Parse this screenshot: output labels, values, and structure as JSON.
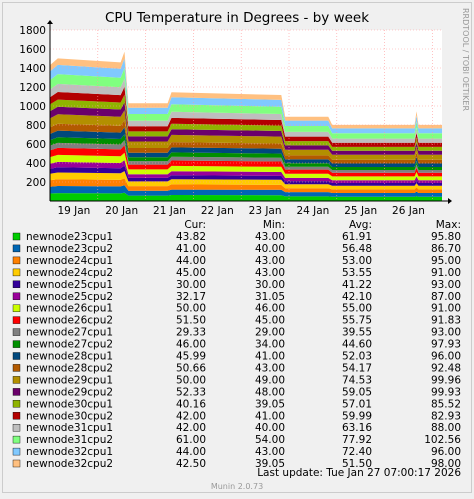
{
  "chart_data": {
    "type": "area",
    "title": "CPU Temperature in Degrees - by week",
    "side_label": "RRDTOOL / TOBI OETIKER",
    "footer": "Munin 2.0.73",
    "last_update": "Last update:  Tue Jan 27 07:00:17 2026",
    "ylim": [
      0,
      1800
    ],
    "yticks": [
      200,
      400,
      600,
      800,
      1000,
      1200,
      1400,
      1600,
      1800
    ],
    "xticks": [
      "19 Jan",
      "20 Jan",
      "21 Jan",
      "22 Jan",
      "23 Jan",
      "24 Jan",
      "25 Jan",
      "26 Jan"
    ],
    "grid": true,
    "columns": [
      "Cur:",
      "Min:",
      "Avg:",
      "Max:"
    ],
    "series": [
      {
        "name": "newnode23cpu1",
        "color": "#00cc00",
        "cur": "43.82",
        "min": "43.00",
        "avg": "61.91",
        "max": "95.80"
      },
      {
        "name": "newnode23cpu2",
        "color": "#0066b3",
        "cur": "41.00",
        "min": "40.00",
        "avg": "56.48",
        "max": "86.70"
      },
      {
        "name": "newnode24cpu1",
        "color": "#ff8000",
        "cur": "44.00",
        "min": "43.00",
        "avg": "53.00",
        "max": "95.00"
      },
      {
        "name": "newnode24cpu2",
        "color": "#ffcc00",
        "cur": "45.00",
        "min": "43.00",
        "avg": "53.55",
        "max": "91.00"
      },
      {
        "name": "newnode25cpu1",
        "color": "#330099",
        "cur": "30.00",
        "min": "30.00",
        "avg": "41.22",
        "max": "93.00"
      },
      {
        "name": "newnode25cpu2",
        "color": "#990099",
        "cur": "32.17",
        "min": "31.05",
        "avg": "42.10",
        "max": "87.00"
      },
      {
        "name": "newnode26cpu1",
        "color": "#ccff00",
        "cur": "50.00",
        "min": "46.00",
        "avg": "55.00",
        "max": "91.00"
      },
      {
        "name": "newnode26cpu2",
        "color": "#ff0000",
        "cur": "51.50",
        "min": "45.00",
        "avg": "55.75",
        "max": "91.83"
      },
      {
        "name": "newnode27cpu1",
        "color": "#808080",
        "cur": "29.33",
        "min": "29.00",
        "avg": "39.55",
        "max": "93.00"
      },
      {
        "name": "newnode27cpu2",
        "color": "#008f00",
        "cur": "46.00",
        "min": "34.00",
        "avg": "44.60",
        "max": "97.93"
      },
      {
        "name": "newnode28cpu1",
        "color": "#00487d",
        "cur": "45.99",
        "min": "41.00",
        "avg": "52.03",
        "max": "96.00"
      },
      {
        "name": "newnode28cpu2",
        "color": "#b35a00",
        "cur": "50.66",
        "min": "43.00",
        "avg": "54.17",
        "max": "92.48"
      },
      {
        "name": "newnode29cpu1",
        "color": "#b38f00",
        "cur": "50.00",
        "min": "49.00",
        "avg": "74.53",
        "max": "99.96"
      },
      {
        "name": "newnode29cpu2",
        "color": "#6b006b",
        "cur": "52.33",
        "min": "48.00",
        "avg": "59.05",
        "max": "99.93"
      },
      {
        "name": "newnode30cpu1",
        "color": "#8fb300",
        "cur": "40.16",
        "min": "39.05",
        "avg": "57.01",
        "max": "85.52"
      },
      {
        "name": "newnode30cpu2",
        "color": "#b30000",
        "cur": "42.00",
        "min": "41.00",
        "avg": "59.99",
        "max": "82.93"
      },
      {
        "name": "newnode31cpu1",
        "color": "#bebebe",
        "cur": "42.00",
        "min": "40.00",
        "avg": "63.16",
        "max": "88.00"
      },
      {
        "name": "newnode31cpu2",
        "color": "#80ff80",
        "cur": "61.00",
        "min": "54.00",
        "avg": "77.92",
        "max": "102.56"
      },
      {
        "name": "newnode32cpu1",
        "color": "#80c9ff",
        "cur": "44.00",
        "min": "43.00",
        "avg": "72.40",
        "max": "96.00"
      },
      {
        "name": "newnode32cpu2",
        "color": "#ffc080",
        "cur": "42.50",
        "min": "39.05",
        "avg": "51.50",
        "max": "98.00"
      }
    ]
  }
}
